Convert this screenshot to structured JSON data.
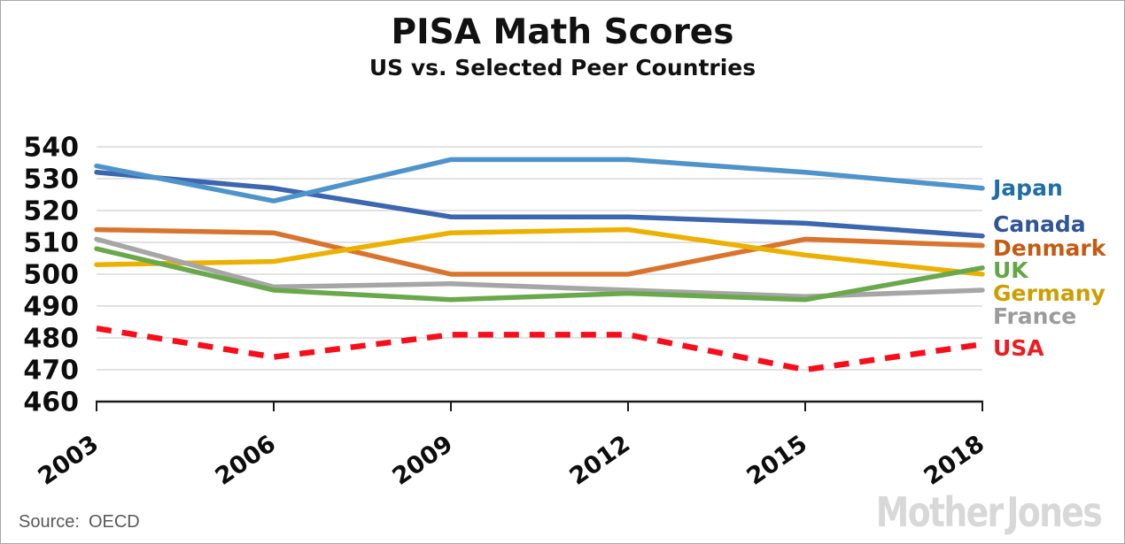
{
  "header": {
    "title": "PISA Math Scores",
    "subtitle": "US vs. Selected Peer Countries"
  },
  "footer": {
    "source_label": "Source:",
    "source_value": "OECD",
    "brand": "Mother Jones"
  },
  "chart_data": {
    "type": "line",
    "title": "PISA Math Scores",
    "subtitle": "US vs. Selected Peer Countries",
    "x": [
      2003,
      2006,
      2009,
      2012,
      2015,
      2018
    ],
    "xlabel": "",
    "ylabel": "",
    "ylim": [
      460,
      540
    ],
    "yticks": [
      460,
      470,
      480,
      490,
      500,
      510,
      520,
      530,
      540
    ],
    "grid": "horizontal-only",
    "grid_color": "#d9d9d9",
    "axis_color": "#1a1a1a",
    "legend_position": "right-of-plot",
    "series": [
      {
        "name": "Japan",
        "color": "#4e94cb",
        "label_color": "#1d6fa5",
        "dashed": false,
        "values": [
          534,
          523,
          536,
          536,
          532,
          527
        ]
      },
      {
        "name": "Canada",
        "color": "#3c67ae",
        "label_color": "#2f5597",
        "dashed": false,
        "values": [
          532,
          527,
          518,
          518,
          516,
          512
        ]
      },
      {
        "name": "Denmark",
        "color": "#d9742e",
        "label_color": "#c55a11",
        "dashed": false,
        "values": [
          514,
          513,
          500,
          500,
          511,
          509
        ]
      },
      {
        "name": "UK",
        "color": "#6aa84c",
        "label_color": "#62a744",
        "dashed": false,
        "values": [
          508,
          495,
          492,
          494,
          492,
          502
        ]
      },
      {
        "name": "Germany",
        "color": "#ecb100",
        "label_color": "#cc9e00",
        "dashed": false,
        "values": [
          503,
          504,
          513,
          514,
          506,
          500
        ]
      },
      {
        "name": "France",
        "color": "#a6a6a6",
        "label_color": "#9b9b9b",
        "dashed": false,
        "values": [
          511,
          496,
          497,
          495,
          493,
          495
        ]
      },
      {
        "name": "USA",
        "color": "#f90d1b",
        "label_color": "#ed1c24",
        "dashed": true,
        "values": [
          483,
          474,
          481,
          481,
          470,
          478
        ]
      }
    ]
  }
}
